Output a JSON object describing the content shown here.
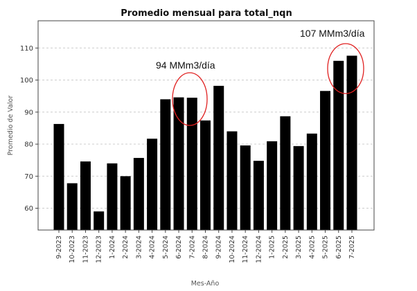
{
  "chart_data": {
    "type": "bar",
    "title": "Promedio mensual para total_nqn",
    "xlabel": "Mes-Año",
    "ylabel": "Promedio de Valor",
    "ylim": [
      53.2,
      118.5
    ],
    "yticks": [
      60,
      70,
      80,
      90,
      100,
      110
    ],
    "grid": "horizontal dashed",
    "categories": [
      "9-2023",
      "10-2023",
      "11-2023",
      "12-2023",
      "1-2024",
      "2-2024",
      "3-2024",
      "4-2024",
      "5-2024",
      "6-2024",
      "7-2024",
      "8-2024",
      "9-2024",
      "10-2024",
      "11-2024",
      "12-2024",
      "1-2025",
      "2-2025",
      "3-2025",
      "4-2025",
      "5-2025",
      "6-2025",
      "7-2025"
    ],
    "values": [
      86.3,
      67.8,
      74.6,
      59.0,
      74.0,
      70.0,
      75.7,
      81.7,
      94.0,
      94.6,
      94.5,
      87.4,
      98.2,
      84.0,
      79.6,
      74.8,
      80.9,
      88.7,
      79.4,
      83.3,
      96.6,
      106.0,
      107.6
    ],
    "bar_color": "#000000",
    "annotations": [
      {
        "text": "94 MMm3/día",
        "highlight_categories": [
          "6-2024",
          "7-2024"
        ],
        "circle_color": "#e02020"
      },
      {
        "text": "107 MMm3/día",
        "highlight_categories": [
          "6-2025",
          "7-2025"
        ],
        "circle_color": "#e02020"
      }
    ]
  }
}
